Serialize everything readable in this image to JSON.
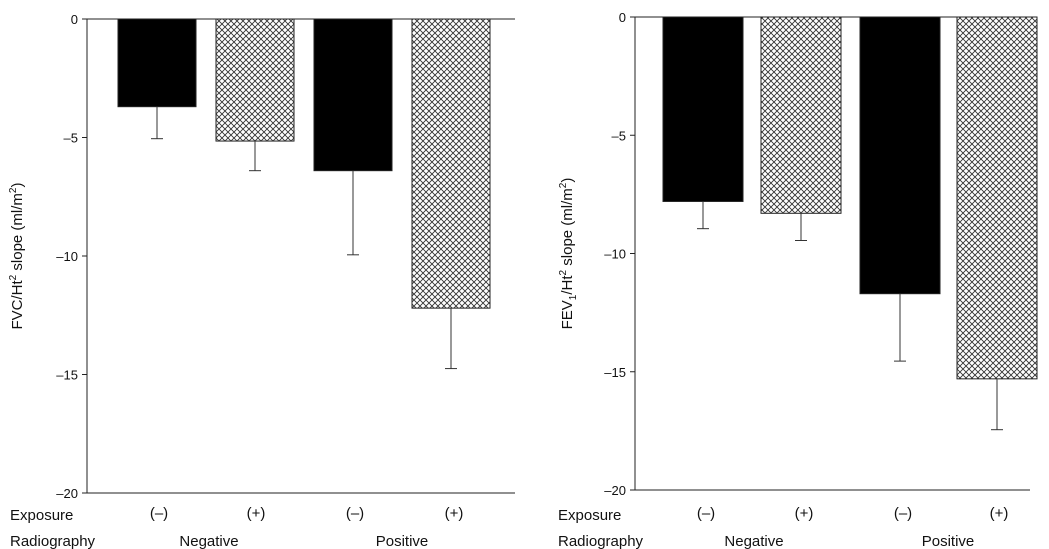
{
  "row_labels": {
    "exposure": "Exposure",
    "radiography": "Radiography"
  },
  "chart_data": [
    {
      "type": "bar",
      "ylabel_main": "FVC/Ht",
      "ylabel_sup": "2",
      "ylabel_rest": " slope (ml/m",
      "ylabel_sup2": "2",
      "ylabel_end": ")",
      "ylim": [
        -20,
        0
      ],
      "yticks": [
        0,
        -5,
        -10,
        -15,
        -20
      ],
      "categories": [
        "(–)",
        "(+)",
        "(–)",
        "(+)"
      ],
      "groups": [
        "Negative",
        "Positive"
      ],
      "values": [
        -3.7,
        -5.15,
        -6.4,
        -12.2
      ],
      "error_low": [
        -5.05,
        -6.4,
        -9.95,
        -14.75
      ],
      "fills": [
        "#000000",
        "hatch",
        "#000000",
        "hatch"
      ]
    },
    {
      "type": "bar",
      "ylabel_main": "FEV",
      "ylabel_sub": "1",
      "ylabel_mid": "/Ht",
      "ylabel_sup": "2",
      "ylabel_rest": " slope (ml/m",
      "ylabel_sup2": "2",
      "ylabel_end": ")",
      "ylim": [
        -20,
        0
      ],
      "yticks": [
        0,
        -5,
        -10,
        -15,
        -20
      ],
      "categories": [
        "(–)",
        "(+)",
        "(–)",
        "(+)"
      ],
      "groups": [
        "Negative",
        "Positive"
      ],
      "values": [
        -7.8,
        -8.3,
        -11.7,
        -15.3
      ],
      "error_low": [
        -8.95,
        -9.45,
        -14.55,
        -17.45
      ],
      "fills": [
        "#000000",
        "hatch",
        "#000000",
        "hatch"
      ]
    }
  ]
}
